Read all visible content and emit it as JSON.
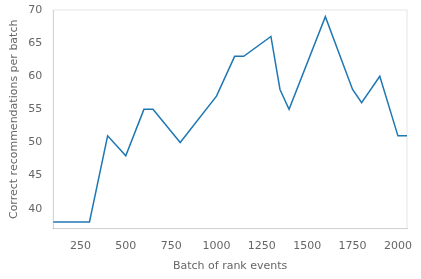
{
  "chart_data": {
    "type": "line",
    "x": [
      100,
      250,
      300,
      400,
      500,
      600,
      650,
      800,
      1000,
      1100,
      1150,
      1300,
      1350,
      1400,
      1600,
      1750,
      1800,
      1900,
      2000,
      2050
    ],
    "values": [
      38,
      38,
      38,
      51,
      48,
      55,
      55,
      50,
      57,
      63,
      63,
      66,
      58,
      55,
      69,
      58,
      56,
      60,
      51,
      51
    ],
    "color": "#1f77b4",
    "xlabel": "Batch of rank events",
    "ylabel": "Correct recommendations per batch",
    "xlim": [
      100,
      2050
    ],
    "ylim": [
      37,
      70
    ],
    "xticks": [
      250,
      500,
      750,
      1000,
      1250,
      1500,
      1750,
      2000
    ],
    "yticks": [
      40,
      45,
      50,
      55,
      60,
      65,
      70
    ],
    "grid": false
  }
}
